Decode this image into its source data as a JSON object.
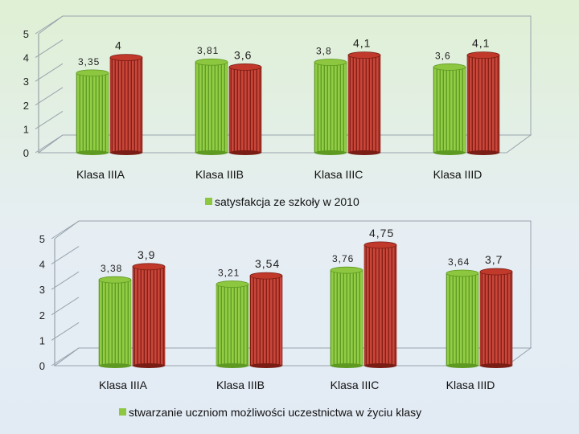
{
  "colors": {
    "green_bar": "#8dc63f",
    "green_dark": "#5e9a22",
    "red_bar": "#c0392b",
    "red_dark": "#7a1d14",
    "legend_marker": "#8dc63f"
  },
  "chart_data": [
    {
      "type": "bar",
      "categories": [
        "Klasa IIIA",
        "Klasa IIIB",
        "Klasa IIIC",
        "Klasa IIID"
      ],
      "series": [
        {
          "values": [
            3.35,
            3.81,
            3.8,
            3.6
          ],
          "labels": [
            "3,35",
            "3,81",
            "3,8",
            "3,6"
          ]
        },
        {
          "values": [
            4,
            3.6,
            4.1,
            4.1
          ],
          "labels": [
            "4",
            "3,6",
            "4,1",
            "4,1"
          ]
        }
      ],
      "legend": [
        "satysfakcja ze szkoły w 2010"
      ],
      "y_ticks": [
        "0",
        "1",
        "2",
        "3",
        "4",
        "5"
      ],
      "ylim": [
        0,
        5
      ],
      "grid": false,
      "legend_position": "bottom"
    },
    {
      "type": "bar",
      "categories": [
        "Klasa IIIA",
        "Klasa IIIB",
        "Klasa IIIC",
        "Klasa IIID"
      ],
      "series": [
        {
          "values": [
            3.38,
            3.21,
            3.76,
            3.64
          ],
          "labels": [
            "3,38",
            "3,21",
            "3,76",
            "3,64"
          ]
        },
        {
          "values": [
            3.9,
            3.54,
            4.75,
            3.7
          ],
          "labels": [
            "3,9",
            "3,54",
            "4,75",
            "3,7"
          ]
        }
      ],
      "legend": [
        "stwarzanie uczniom możliwości uczestnictwa w życiu klasy"
      ],
      "y_ticks": [
        "0",
        "1",
        "2",
        "3",
        "4",
        "5"
      ],
      "ylim": [
        0,
        5
      ],
      "grid": false,
      "legend_position": "bottom"
    }
  ]
}
